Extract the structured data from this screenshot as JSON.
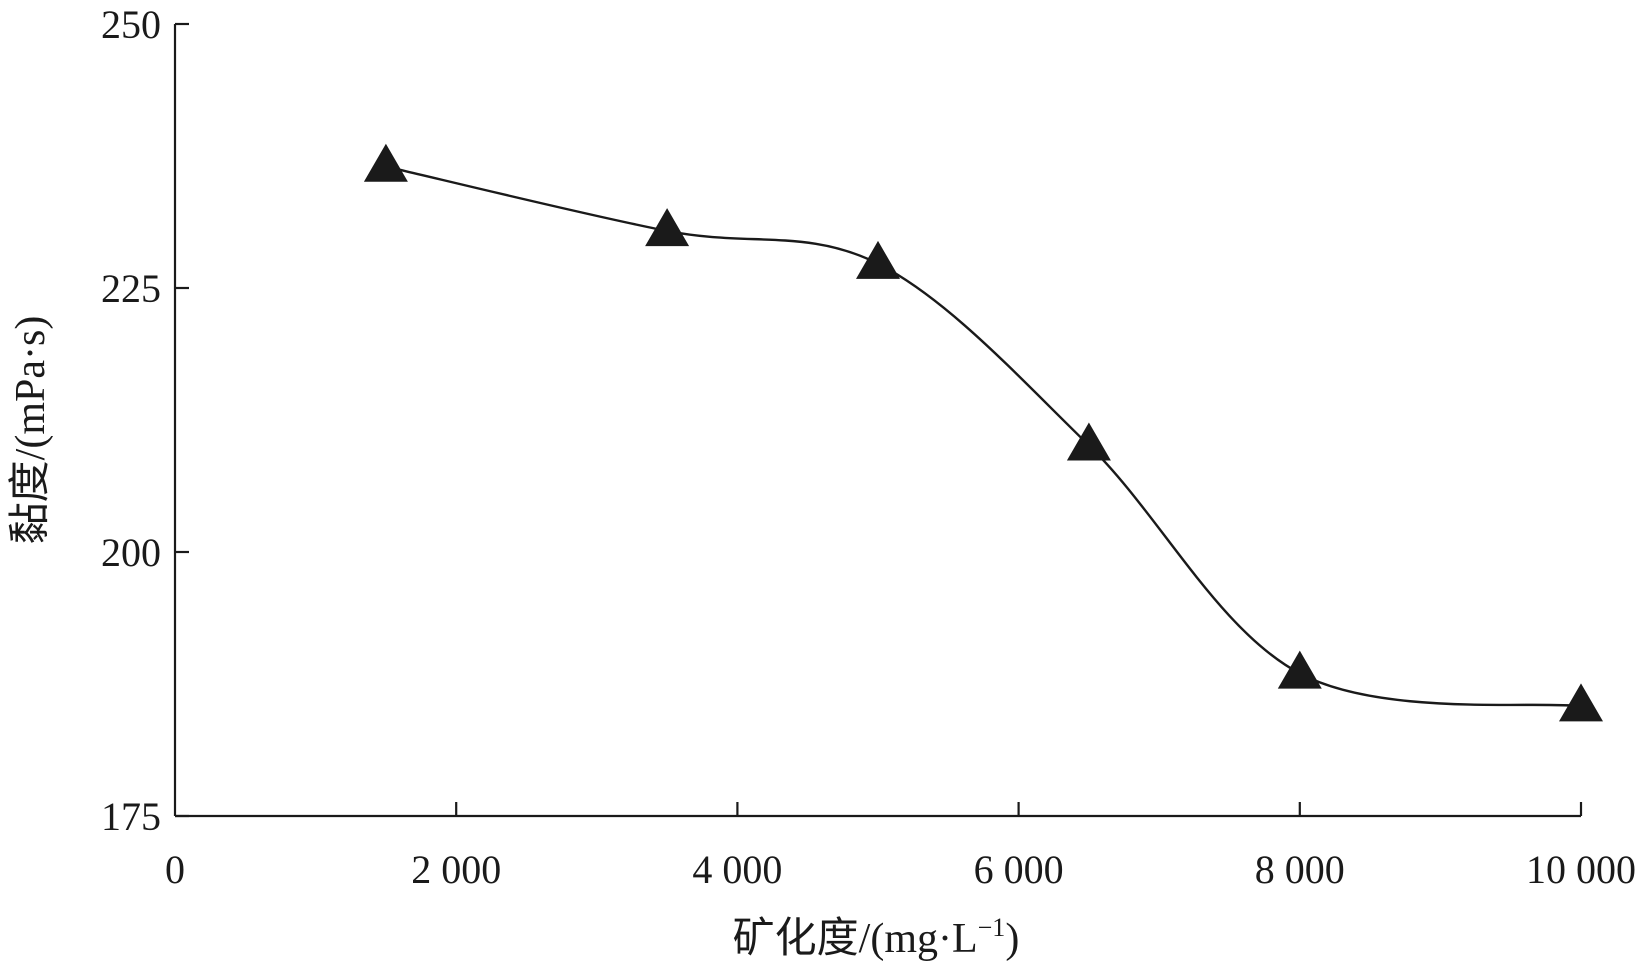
{
  "chart_data": {
    "type": "line",
    "title": "",
    "xlabel": "矿化度/(mg·L",
    "xlabel_sup": "−1",
    "xlabel_close": ")",
    "ylabel": "黏度/(mPa·s)",
    "xlim": [
      0,
      10000
    ],
    "ylim": [
      175,
      250
    ],
    "x_ticks": [
      0,
      2000,
      4000,
      6000,
      8000,
      10000
    ],
    "x_tick_labels": [
      "0",
      "2 000",
      "4 000",
      "6 000",
      "8 000",
      "10 000"
    ],
    "y_ticks": [
      175,
      200,
      225,
      250
    ],
    "y_tick_labels": [
      "175",
      "200",
      "225",
      "250"
    ],
    "grid": false,
    "legend": "none",
    "series": [
      {
        "marker": "triangle",
        "color": "#1a1a1a",
        "x": [
          1500,
          3500,
          5000,
          6500,
          8000,
          10000
        ],
        "y": [
          236.5,
          230.4,
          227.3,
          210.1,
          188.5,
          185.4
        ]
      }
    ]
  }
}
